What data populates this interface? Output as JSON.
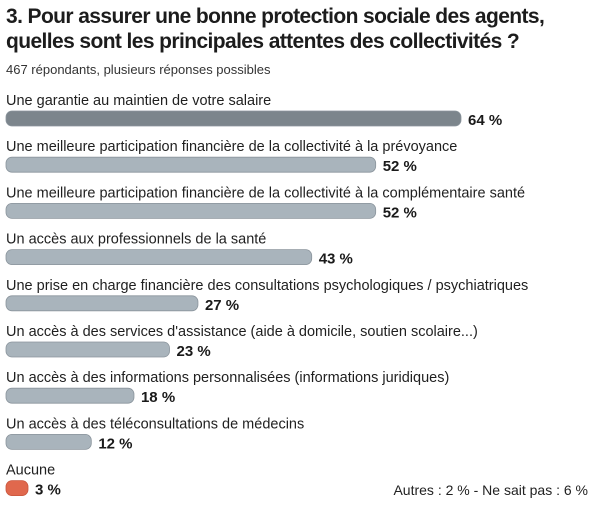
{
  "header": {
    "title_line1": "3. Pour assurer une bonne protection sociale des agents,",
    "title_line2": "quelles sont les principales attentes des collectivités ?",
    "subtitle": "467 répondants, plusieurs réponses possibles"
  },
  "colors": {
    "highlight": "#7c858c",
    "default": "#a9b4bc",
    "none": "#e0684d",
    "bar_edge": "#8a949c"
  },
  "chart_data": {
    "type": "bar",
    "orientation": "horizontal",
    "unit": "%",
    "categories": [
      "Une garantie au maintien de votre salaire",
      "Une meilleure participation financière de la collectivité à la prévoyance",
      "Une meilleure participation financière de la collectivité à la complémentaire santé",
      "Un accès aux professionnels de la santé",
      "Une prise en charge financière des consultations psychologiques / psychiatriques",
      "Un accès à des services d'assistance (aide à domicile, soutien scolaire...)",
      "Un accès à des informations personnalisées (informations juridiques)",
      "Un accès à des téléconsultations de médecins",
      "Aucune"
    ],
    "values": [
      64,
      52,
      52,
      43,
      27,
      23,
      18,
      12,
      3
    ],
    "value_labels": [
      "64 %",
      "52 %",
      "52 %",
      "43 %",
      "27 %",
      "23 %",
      "18 %",
      "12 %",
      "3 %"
    ],
    "xlim": [
      0,
      64
    ],
    "grid": false,
    "legend": "none"
  },
  "footnote": "Autres : 2 % - Ne sait pas : 6 %"
}
